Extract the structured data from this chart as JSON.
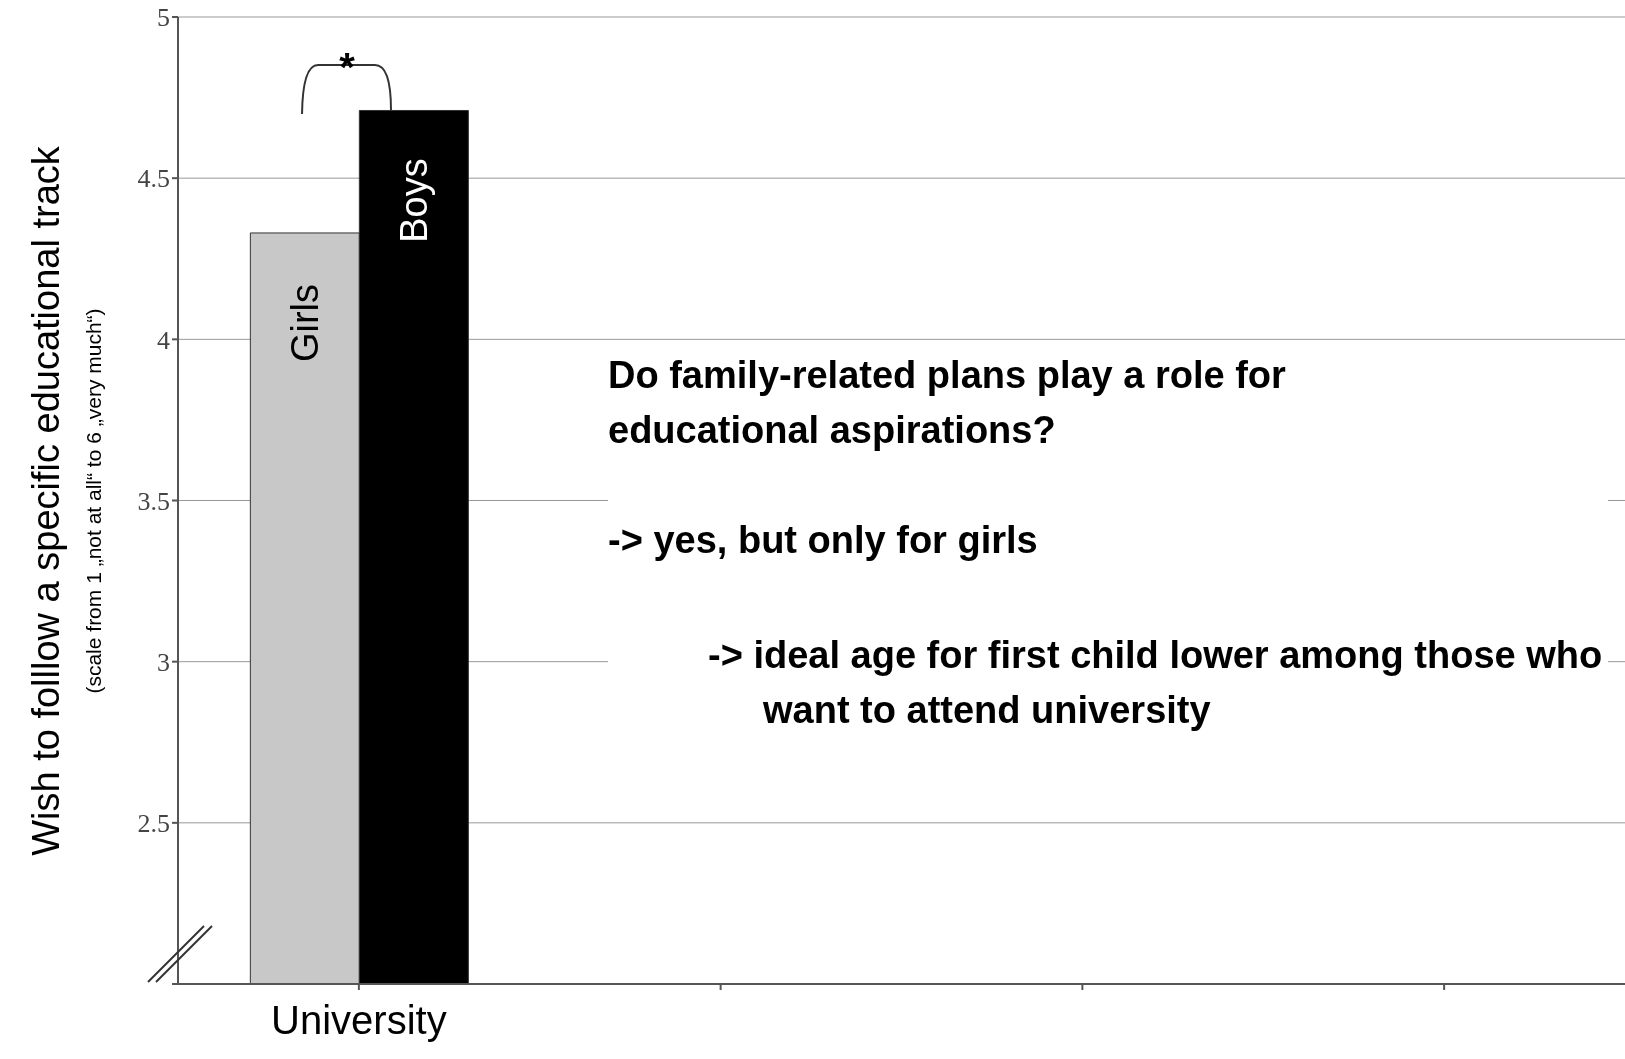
{
  "chart_data": {
    "type": "bar",
    "ylabel": "Wish to folllow a specific educational track",
    "categories": [
      "University",
      null,
      null,
      null
    ],
    "series": [
      {
        "name": "Girls",
        "color": "#c8c8c8",
        "values": [
          4.33,
          null,
          null,
          null
        ]
      },
      {
        "name": "Boys",
        "color": "#000000",
        "values": [
          4.71,
          null,
          null,
          null
        ]
      }
    ],
    "ylim": [
      2,
      5
    ],
    "yticks": [
      {
        "value": 2,
        "label": null
      },
      2.5,
      3,
      3.5,
      4,
      4.5,
      5
    ],
    "grid": "y",
    "legend": false,
    "annotations": [
      "*",
      "(scale from 1 „not at all“ to 6 „very much“)",
      "Do family-related plans play a role for educational aspirations?",
      "-> yes, but only for girls",
      "-> ideal age for first child lower among those who want to attend university"
    ]
  }
}
